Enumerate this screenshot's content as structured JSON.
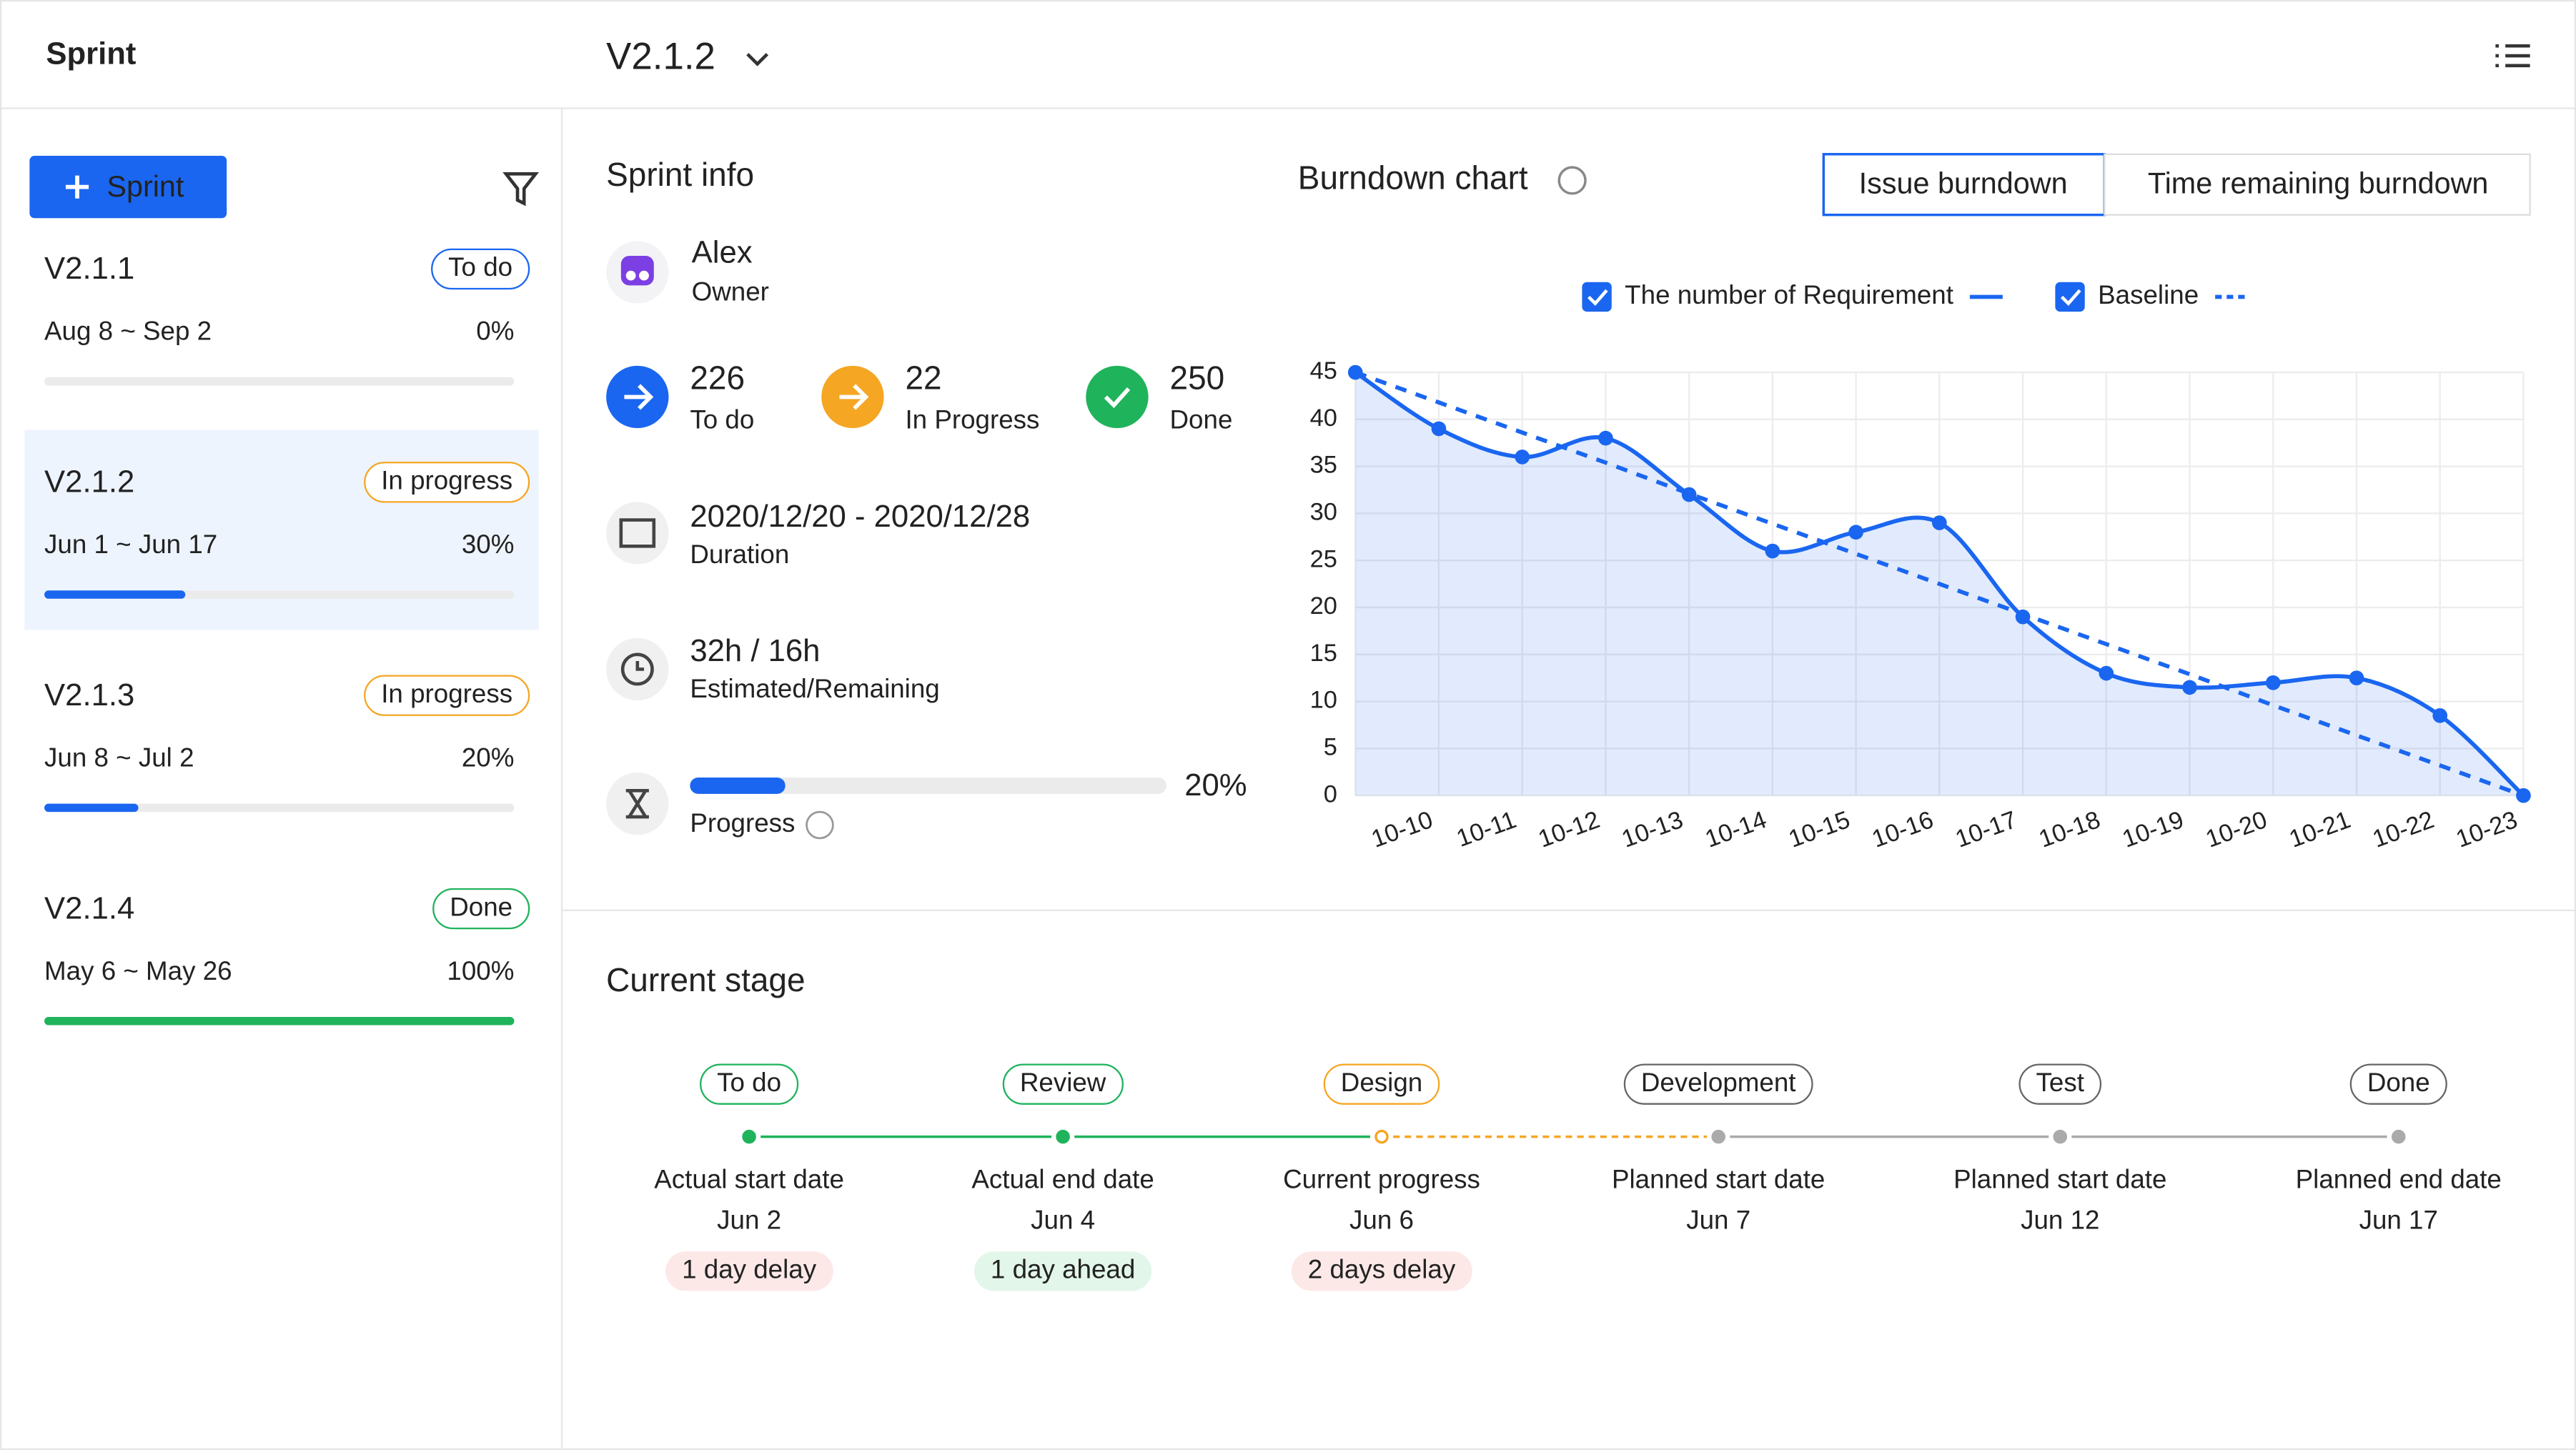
{
  "header": {
    "title": "Sprint",
    "version": "V2.1.2"
  },
  "sidebar": {
    "button": "Sprint",
    "sprints": [
      {
        "name": "V2.1.1",
        "status": "To do",
        "status_color": "#1a66f0",
        "dates": "Aug 8 ~ Sep 2",
        "progress": 0,
        "progress_label": "0%",
        "bar_color": "#1a66f0"
      },
      {
        "name": "V2.1.2",
        "status": "In progress",
        "status_color": "#f5a623",
        "dates": "Jun 1 ~ Jun 17",
        "progress": 30,
        "progress_label": "30%",
        "bar_color": "#1a66f0"
      },
      {
        "name": "V2.1.3",
        "status": "In progress",
        "status_color": "#f5a623",
        "dates": "Jun 8 ~ Jul 2",
        "progress": 20,
        "progress_label": "20%",
        "bar_color": "#1a66f0"
      },
      {
        "name": "V2.1.4",
        "status": "Done",
        "status_color": "#1fb35c",
        "dates": "May 6 ~ May 26",
        "progress": 100,
        "progress_label": "100%",
        "bar_color": "#1fb35c"
      }
    ]
  },
  "sprint_info": {
    "title": "Sprint info",
    "owner": "Alex",
    "owner_label": "Owner",
    "stats": [
      {
        "value": "226",
        "label": "To do",
        "color": "#1a66f0"
      },
      {
        "value": "22",
        "label": "In Progress",
        "color": "#f5a623"
      },
      {
        "value": "250",
        "label": "Done",
        "color": "#1fb35c"
      }
    ],
    "duration": "2020/12/20 - 2020/12/28",
    "duration_label": "Duration",
    "time": "32h / 16h",
    "time_label": "Estimated/Remaining",
    "progress": 20,
    "progress_label": "20%",
    "progress_caption": "Progress"
  },
  "chart_data": {
    "type": "line",
    "title": "Burndown chart",
    "tabs": [
      "Issue burndown",
      "Time remaining burndown"
    ],
    "categories": [
      null,
      "10-10",
      "10-11",
      "10-12",
      "10-13",
      "10-14",
      "10-15",
      "10-16",
      "10-17",
      "10-18",
      "10-19",
      "10-20",
      "10-21",
      "10-22",
      "10-23"
    ],
    "series": [
      {
        "name": "The number of Requirement",
        "color": "#1a66f0",
        "style": "solid",
        "values": [
          45,
          39,
          36,
          38,
          32,
          26,
          28,
          29,
          19,
          13,
          11.5,
          12,
          12.5,
          8.5,
          0
        ]
      },
      {
        "name": "Baseline",
        "color": "#1a66f0",
        "style": "dashed",
        "values": [
          45,
          41.8,
          38.6,
          35.4,
          32.1,
          28.9,
          25.7,
          22.5,
          19.3,
          16.1,
          12.9,
          9.6,
          6.4,
          3.2,
          0
        ]
      }
    ],
    "ylim": [
      0,
      45
    ],
    "yticks": [
      0,
      5,
      10,
      15,
      20,
      25,
      30,
      35,
      40,
      45
    ],
    "grid": true
  },
  "current_stage": {
    "title": "Current stage",
    "stages": [
      {
        "name": "To do",
        "color": "#1fb35c",
        "dot": "filled",
        "caption": "Actual start date",
        "date": "Jun 2",
        "badge": "1 day delay",
        "badge_color": "#e5484d"
      },
      {
        "name": "Review",
        "color": "#1fb35c",
        "dot": "filled",
        "caption": "Actual end date",
        "date": "Jun 4",
        "badge": "1 day ahead",
        "badge_color": "#1fb35c"
      },
      {
        "name": "Design",
        "color": "#f5a623",
        "dot": "hollow",
        "caption": "Current progress",
        "date": "Jun 6",
        "badge": "2 days delay",
        "badge_color": "#e5484d"
      },
      {
        "name": "Development",
        "color": "#aaaaaa",
        "dot": "filled",
        "caption": "Planned start date",
        "date": "Jun 7"
      },
      {
        "name": "Test",
        "color": "#aaaaaa",
        "dot": "filled",
        "caption": "Planned start date",
        "date": "Jun 12"
      },
      {
        "name": "Done",
        "color": "#aaaaaa",
        "dot": "filled",
        "caption": "Planned end date",
        "date": "Jun 17"
      }
    ]
  }
}
